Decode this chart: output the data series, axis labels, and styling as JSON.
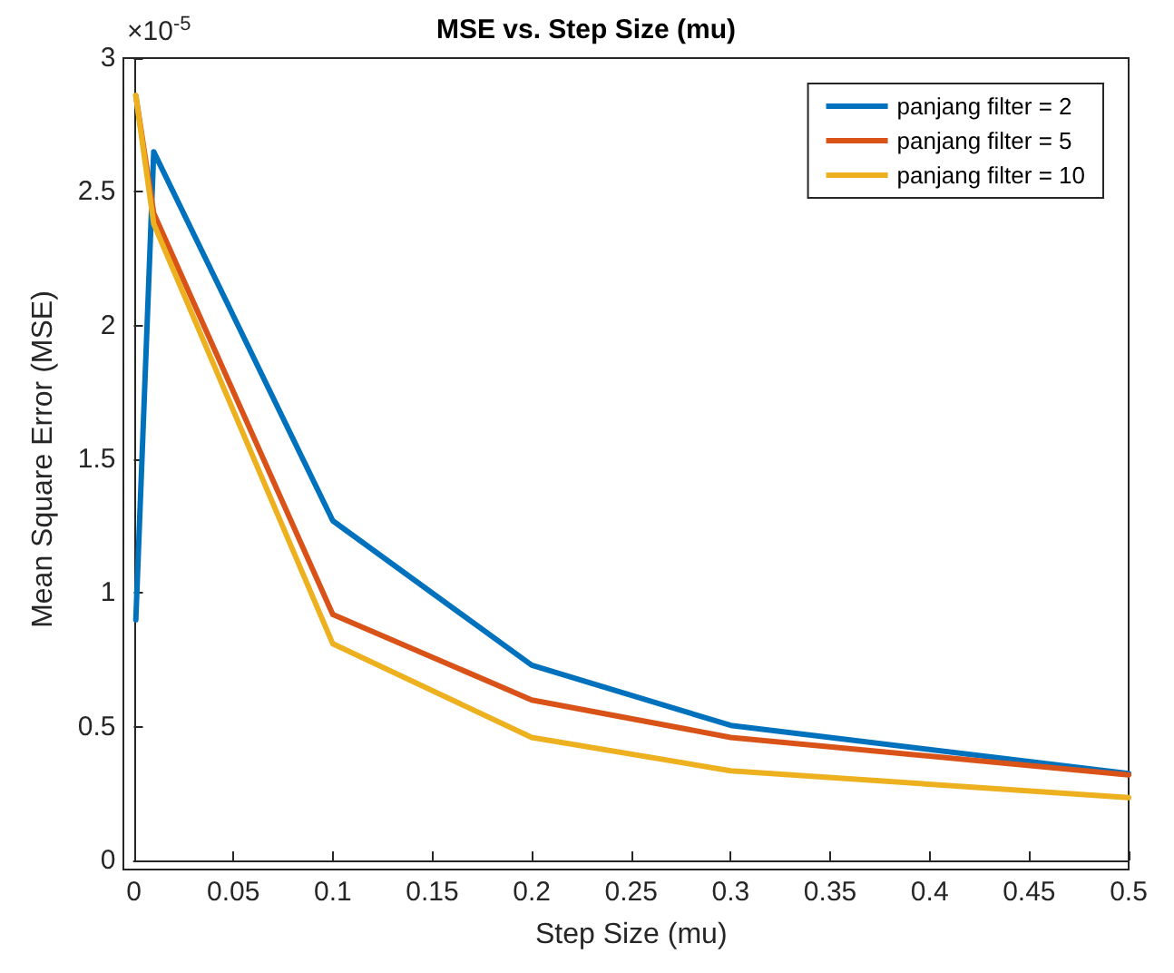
{
  "chart_data": {
    "type": "line",
    "title": "MSE vs. Step Size (mu)",
    "xlabel": "Step Size (mu)",
    "ylabel": "Mean Square Error (MSE)",
    "annotations": [
      "×10$^{-5}$"
    ],
    "x": [
      0.001,
      0.01,
      0.1,
      0.2,
      0.3,
      0.5
    ],
    "series": [
      {
        "name": "panjang filter = 2",
        "color": "#0072bd",
        "values": [
          0.9,
          2.65,
          1.27,
          0.73,
          0.505,
          0.325
        ]
      },
      {
        "name": "panjang filter = 5",
        "color": "#d95319",
        "values": [
          2.86,
          2.42,
          0.92,
          0.6,
          0.46,
          0.32
        ]
      },
      {
        "name": "panjang filter = 10",
        "color": "#edb120",
        "values": [
          2.86,
          2.38,
          0.81,
          0.46,
          0.335,
          0.235
        ]
      }
    ],
    "xlim": [
      0,
      0.5
    ],
    "xticks": [
      0,
      0.05,
      0.1,
      0.15,
      0.2,
      0.25,
      0.3,
      0.35,
      0.4,
      0.45,
      0.5
    ],
    "ylim": [
      0,
      3
    ],
    "yticks": [
      0,
      0.5,
      1,
      1.5,
      2,
      2.5,
      3
    ],
    "grid": false,
    "legend": "top right",
    "marker": "none",
    "line_style": "solid"
  }
}
